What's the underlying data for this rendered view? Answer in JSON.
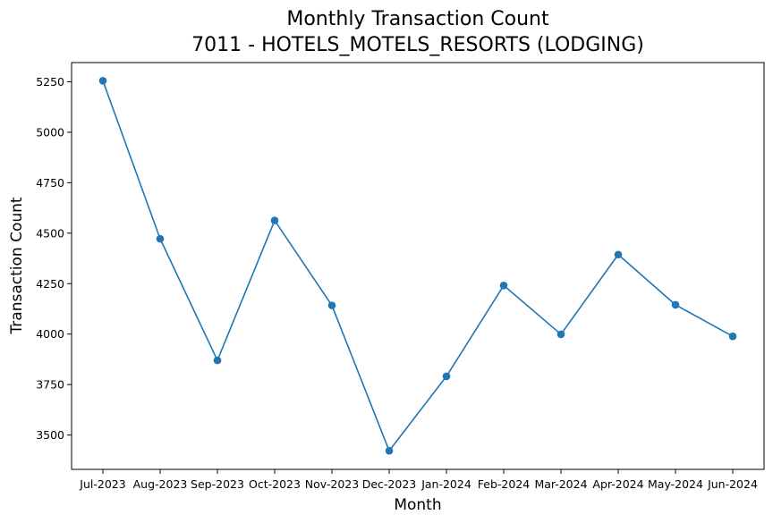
{
  "chart_data": {
    "type": "line",
    "title": "Monthly Transaction Count",
    "subtitle": "7011 - HOTELS_MOTELS_RESORTS (LODGING)",
    "xlabel": "Month",
    "ylabel": "Transaction Count",
    "categories": [
      "Jul-2023",
      "Aug-2023",
      "Sep-2023",
      "Oct-2023",
      "Nov-2023",
      "Dec-2023",
      "Jan-2024",
      "Feb-2024",
      "Mar-2024",
      "Apr-2024",
      "May-2024",
      "Jun-2024"
    ],
    "series": [
      {
        "values": [
          5255,
          4472,
          3870,
          4563,
          4142,
          3422,
          3791,
          4241,
          3999,
          4394,
          4145,
          3989
        ],
        "color": "#1f77b4",
        "marker": "circle"
      }
    ],
    "ylim": [
      3330,
      5345
    ],
    "yticks": [
      3500,
      3750,
      4000,
      4250,
      4500,
      4750,
      5000,
      5250
    ],
    "grid": false,
    "legend": "none"
  }
}
